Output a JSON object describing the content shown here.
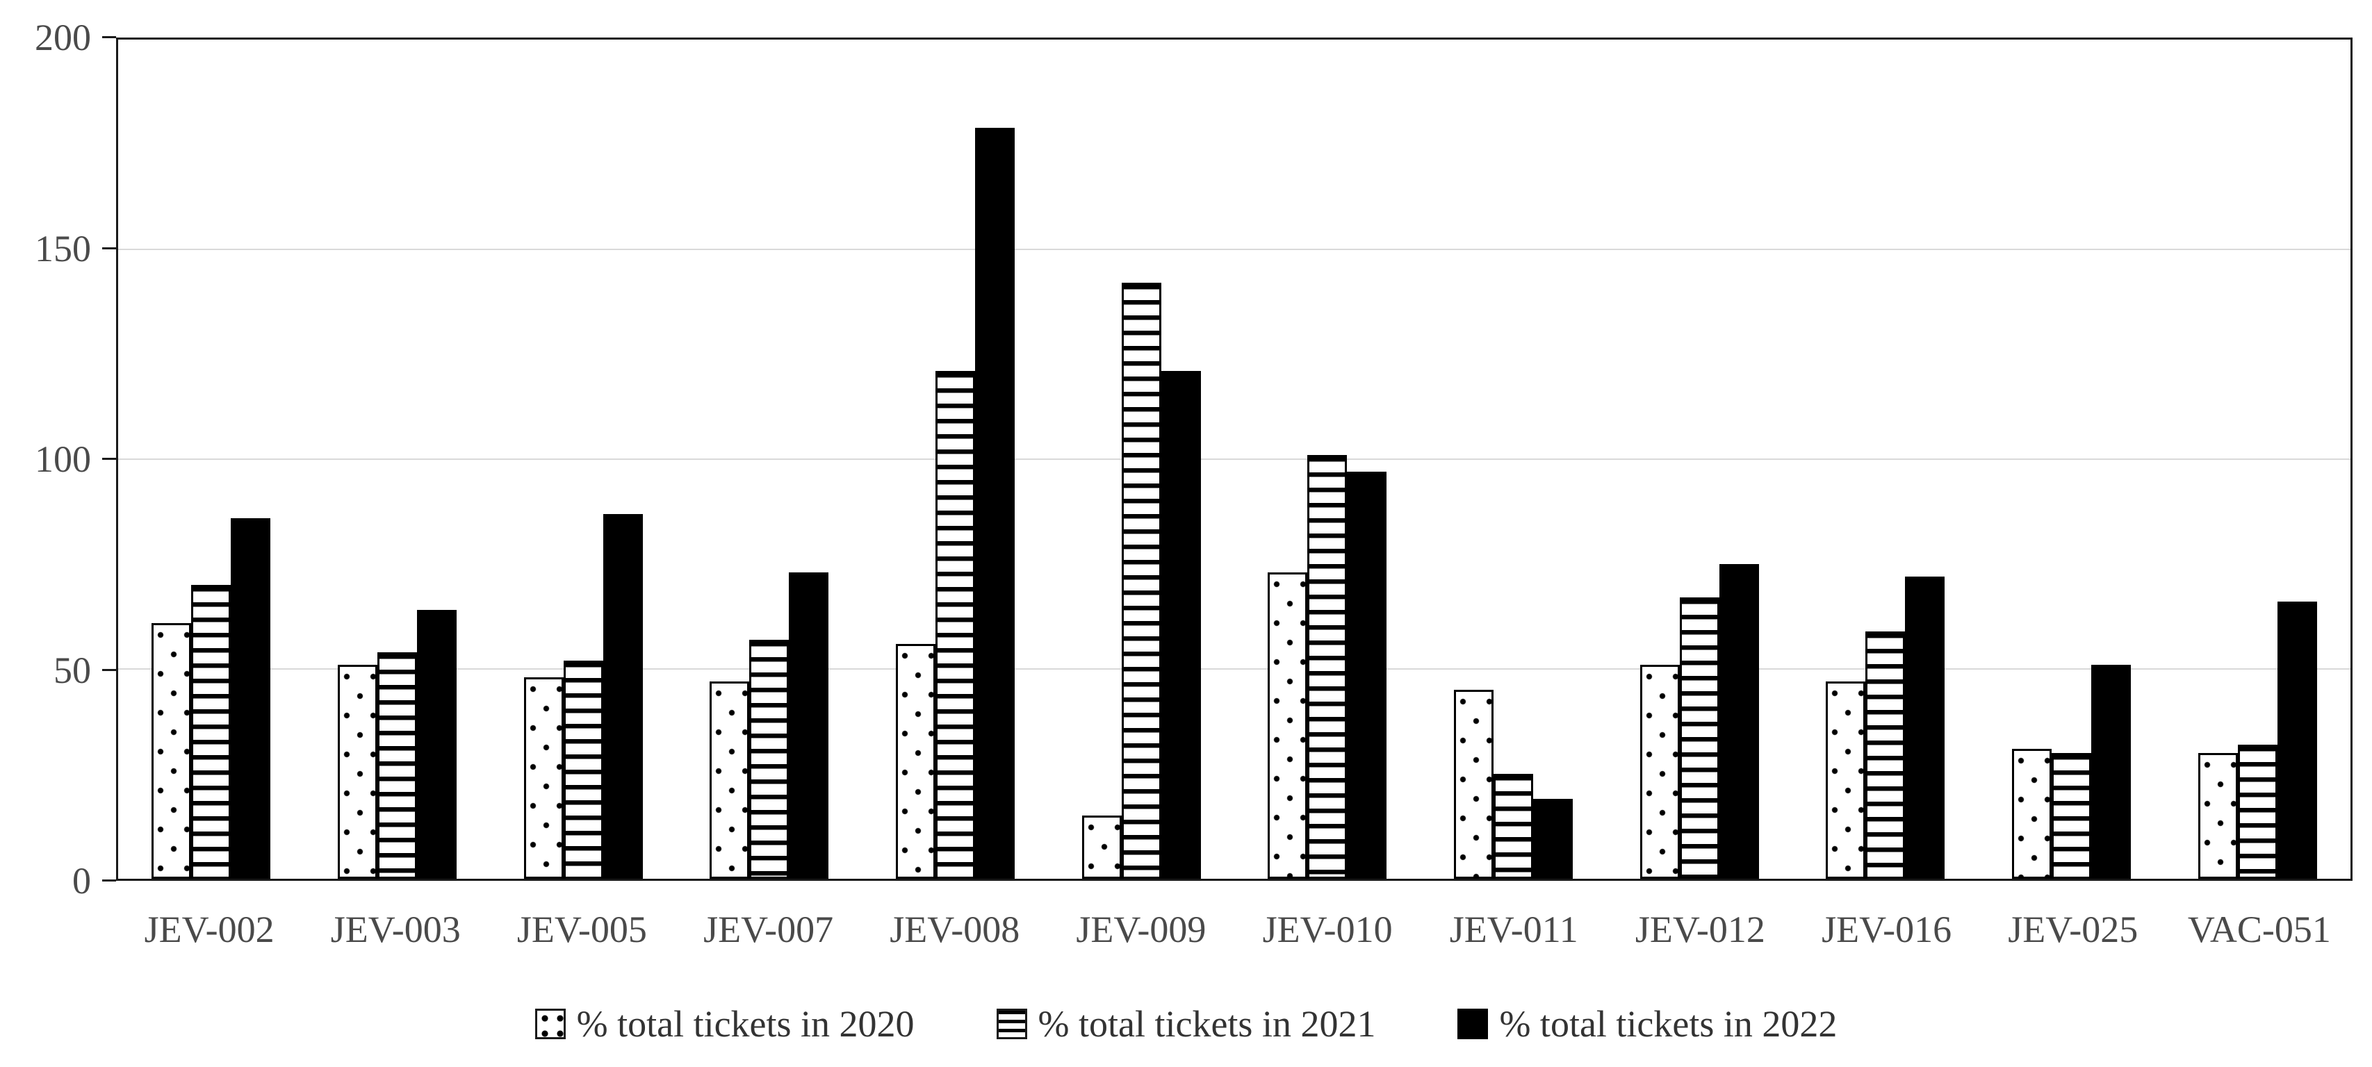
{
  "figure": {
    "background": "#ffffff"
  },
  "chart_data": {
    "type": "bar",
    "title": "",
    "xlabel": "",
    "ylabel": "",
    "categories": [
      "JEV-002",
      "JEV-003",
      "JEV-005",
      "JEV-007",
      "JEV-008",
      "JEV-009",
      "JEV-010",
      "JEV-011",
      "JEV-012",
      "JEV-016",
      "JEV-025",
      "VAC-051"
    ],
    "series": [
      {
        "name": "% total tickets in 2020",
        "pattern": "dots",
        "values": [
          61,
          51,
          48,
          47,
          56,
          15,
          73,
          45,
          51,
          47,
          31,
          30
        ]
      },
      {
        "name": "% total tickets in 2021",
        "pattern": "hlines",
        "values": [
          70,
          54,
          52,
          57,
          121,
          142,
          101,
          25,
          67,
          59,
          30,
          32
        ]
      },
      {
        "name": "% total tickets in 2022",
        "pattern": "solid",
        "values": [
          86,
          64,
          87,
          73,
          179,
          121,
          97,
          19,
          75,
          72,
          51,
          66
        ]
      }
    ],
    "y_axis": {
      "min": 0,
      "max": 200,
      "step": 50,
      "tick_labels": [
        "0",
        "50",
        "100",
        "150",
        "200"
      ]
    },
    "grid": true,
    "legend_position": "bottom-center",
    "colors": {
      "bar_fill": "#ffffff",
      "bar_stroke": "#000000",
      "solid_fill": "#000000",
      "gridline": "#d9d9d9",
      "axis": "#1a1a1a",
      "text": "#4a4a4a",
      "background": "#ffffff"
    }
  }
}
